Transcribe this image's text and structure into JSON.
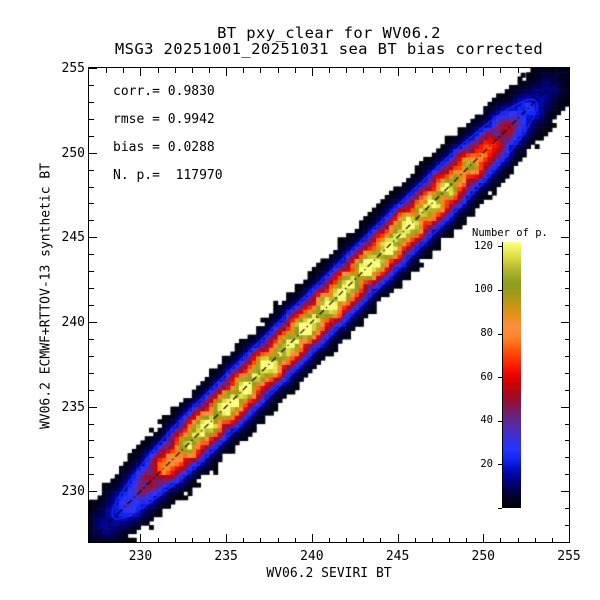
{
  "title": {
    "line1": "BT pxy_clear for WV06.2",
    "line2": "MSG3 20251001_20251031 sea BT bias corrected"
  },
  "stats": {
    "corr": "corr.= 0.9830",
    "rmse": "rmse = 0.9942",
    "bias": "bias = 0.0288",
    "np": "N. p.=  117970"
  },
  "axes": {
    "x": {
      "label": "WV06.2 SEVIRI BT",
      "min": 227,
      "max": 255,
      "major_ticks": [
        230,
        235,
        240,
        245,
        250,
        255
      ],
      "minor_step": 1
    },
    "y": {
      "label": "WV06.2 ECMWF+RTTOV-13 synthetic BT",
      "min": 227,
      "max": 255,
      "major_ticks": [
        230,
        235,
        240,
        245,
        250,
        255
      ],
      "minor_step": 1
    }
  },
  "colorbar": {
    "title": "Number of p.",
    "ticks": [
      20,
      40,
      60,
      80,
      100,
      120
    ],
    "vmin": 0,
    "vmax": 122
  },
  "chart_data": {
    "type": "heatmap",
    "title": "BT pxy_clear for WV06.2",
    "subtitle": "MSG3 20251001_20251031 sea BT bias corrected",
    "xlabel": "WV06.2 SEVIRI BT",
    "ylabel": "WV06.2 ECMWF+RTTOV-13 synthetic BT",
    "x_range": [
      227,
      255
    ],
    "y_range": [
      227,
      255
    ],
    "bin_size": 0.25,
    "stats": {
      "corr": 0.983,
      "rmse": 0.9942,
      "bias": 0.0288,
      "n_points": 117970
    },
    "colormap": {
      "vmin": 0,
      "vmax": 122,
      "stops": [
        [
          0,
          "#000000"
        ],
        [
          6,
          "#000034"
        ],
        [
          12,
          "#00007c"
        ],
        [
          18,
          "#000ec0"
        ],
        [
          23,
          "#1428f4"
        ],
        [
          27,
          "#2834ff"
        ],
        [
          31,
          "#3330e2"
        ],
        [
          36,
          "#4b2cb4"
        ],
        [
          40,
          "#5c2894"
        ],
        [
          44,
          "#741e64"
        ],
        [
          48,
          "#8c1240"
        ],
        [
          52,
          "#a80820"
        ],
        [
          57,
          "#cc0404"
        ],
        [
          62,
          "#f00800"
        ],
        [
          67,
          "#ff2800"
        ],
        [
          72,
          "#ff5008"
        ],
        [
          78,
          "#ff8428"
        ],
        [
          83,
          "#fb9140"
        ],
        [
          88,
          "#e89018"
        ],
        [
          93,
          "#c89614"
        ],
        [
          98,
          "#a09a18"
        ],
        [
          103,
          "#8c9e20"
        ],
        [
          109,
          "#b0b42c"
        ],
        [
          115,
          "#dcdc40"
        ],
        [
          122,
          "#ffff84"
        ]
      ]
    },
    "ridge": {
      "sigma_perp": 0.7,
      "amplitude_profile": [
        [
          226.8,
          3
        ],
        [
          227.6,
          9
        ],
        [
          228.6,
          20
        ],
        [
          229.5,
          32
        ],
        [
          230.5,
          48
        ],
        [
          231.3,
          68
        ],
        [
          232.0,
          88
        ],
        [
          232.8,
          105
        ],
        [
          233.5,
          114
        ],
        [
          234.5,
          120
        ],
        [
          236.0,
          122
        ],
        [
          238.0,
          115
        ],
        [
          240.0,
          122
        ],
        [
          242.0,
          117
        ],
        [
          244.0,
          121
        ],
        [
          245.5,
          117
        ],
        [
          247.0,
          112
        ],
        [
          248.0,
          104
        ],
        [
          249.0,
          93
        ],
        [
          250.2,
          70
        ],
        [
          251.2,
          50
        ],
        [
          252.2,
          30
        ],
        [
          253.2,
          16
        ],
        [
          254.2,
          8
        ],
        [
          254.9,
          4
        ]
      ]
    },
    "contours": [
      {
        "level": 18,
        "color": "#2828ff"
      },
      {
        "level": 40,
        "color": "#d40000"
      }
    ],
    "identity_line": {
      "style": "dash-dot",
      "color": "#000000",
      "from": [
        227,
        227
      ],
      "to": [
        255,
        255
      ]
    },
    "outliers": [
      [
        252.3,
        254.6
      ]
    ]
  }
}
